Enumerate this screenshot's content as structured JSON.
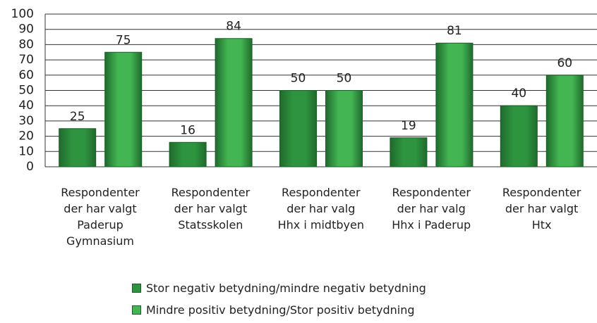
{
  "chart_data": {
    "type": "bar",
    "categories": [
      "Respondenter\nder har valgt\nPaderup\nGymnasium",
      "Respondenter\nder har valgt\nStatsskolen",
      "Respondenter\nder har valg\nHhx i midtbyen",
      "Respondenter\nder har valg\nHhx i Paderup",
      "Respondenter\nder har valgt\nHtx"
    ],
    "series": [
      {
        "name": "Stor negativ betydning/mindre negativ betydning",
        "color": "#2e9440",
        "values": [
          25,
          16,
          50,
          19,
          40
        ]
      },
      {
        "name": "Mindre positiv betydning/Stor positiv betydning",
        "color": "#43b653",
        "values": [
          75,
          84,
          50,
          81,
          60
        ]
      }
    ],
    "ylim": [
      0,
      100
    ],
    "yticks": [
      0,
      10,
      20,
      30,
      40,
      50,
      60,
      70,
      80,
      90,
      100
    ],
    "grid": true,
    "legend": "bottom"
  }
}
